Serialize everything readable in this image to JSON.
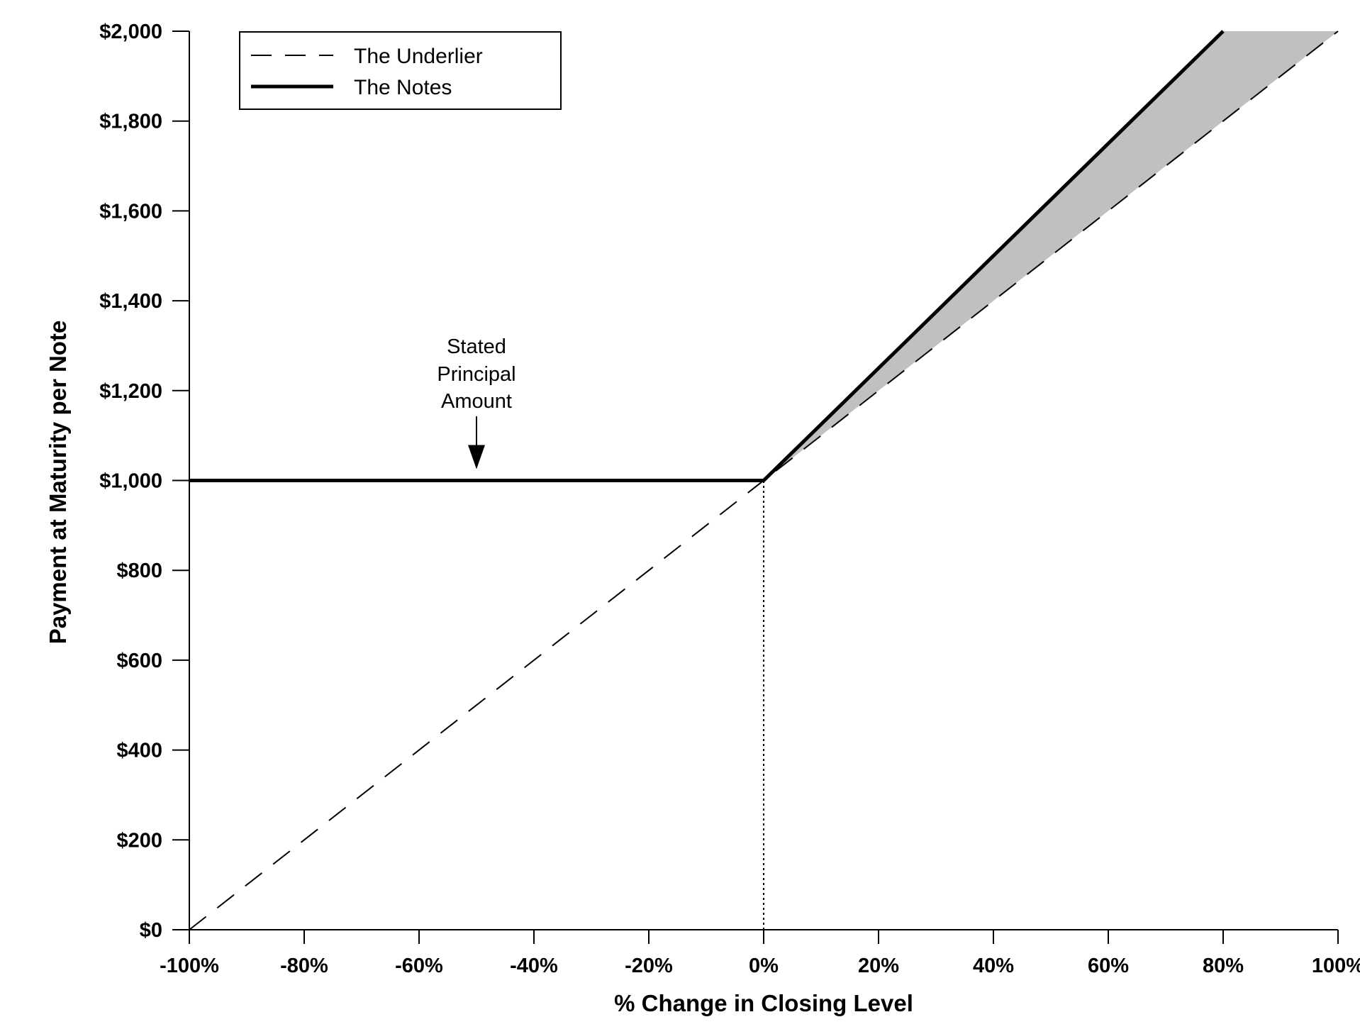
{
  "chart_data": {
    "type": "line",
    "xlabel": "% Change in Closing Level",
    "ylabel": "Payment at Maturity per Note",
    "xlim": [
      -100,
      100
    ],
    "ylim": [
      0,
      2000
    ],
    "x_ticks": [
      -100,
      -80,
      -60,
      -40,
      -20,
      0,
      20,
      40,
      60,
      80,
      100
    ],
    "x_tick_labels": [
      "-100%",
      "-80%",
      "-60%",
      "-40%",
      "-20%",
      "0%",
      "20%",
      "40%",
      "60%",
      "80%",
      "100%"
    ],
    "y_ticks": [
      0,
      200,
      400,
      600,
      800,
      1000,
      1200,
      1400,
      1600,
      1800,
      2000
    ],
    "y_tick_labels": [
      "$0",
      "$200",
      "$400",
      "$600",
      "$800",
      "$1,000",
      "$1,200",
      "$1,400",
      "$1,600",
      "$1,800",
      "$2,000"
    ],
    "grid": false,
    "legend_position": "top-left",
    "series": [
      {
        "name": "The Underlier",
        "style": "dashed",
        "color": "#000000",
        "points": [
          [
            -100,
            0
          ],
          [
            100,
            2000
          ]
        ]
      },
      {
        "name": "The Notes",
        "style": "solid-thick",
        "color": "#000000",
        "points": [
          [
            -100,
            1000
          ],
          [
            0,
            1000
          ],
          [
            80,
            2000
          ]
        ]
      }
    ],
    "shaded_region": {
      "color": "#c0c0c0",
      "points": [
        [
          0,
          1000
        ],
        [
          80,
          2000
        ],
        [
          100,
          2000
        ]
      ]
    },
    "reference_line": {
      "style": "dotted",
      "x": 0,
      "y_from": 0,
      "y_to": 1000
    },
    "annotation": {
      "lines": [
        "Stated",
        "Principal",
        "Amount"
      ],
      "arrow_target": [
        -50,
        1000
      ]
    }
  }
}
